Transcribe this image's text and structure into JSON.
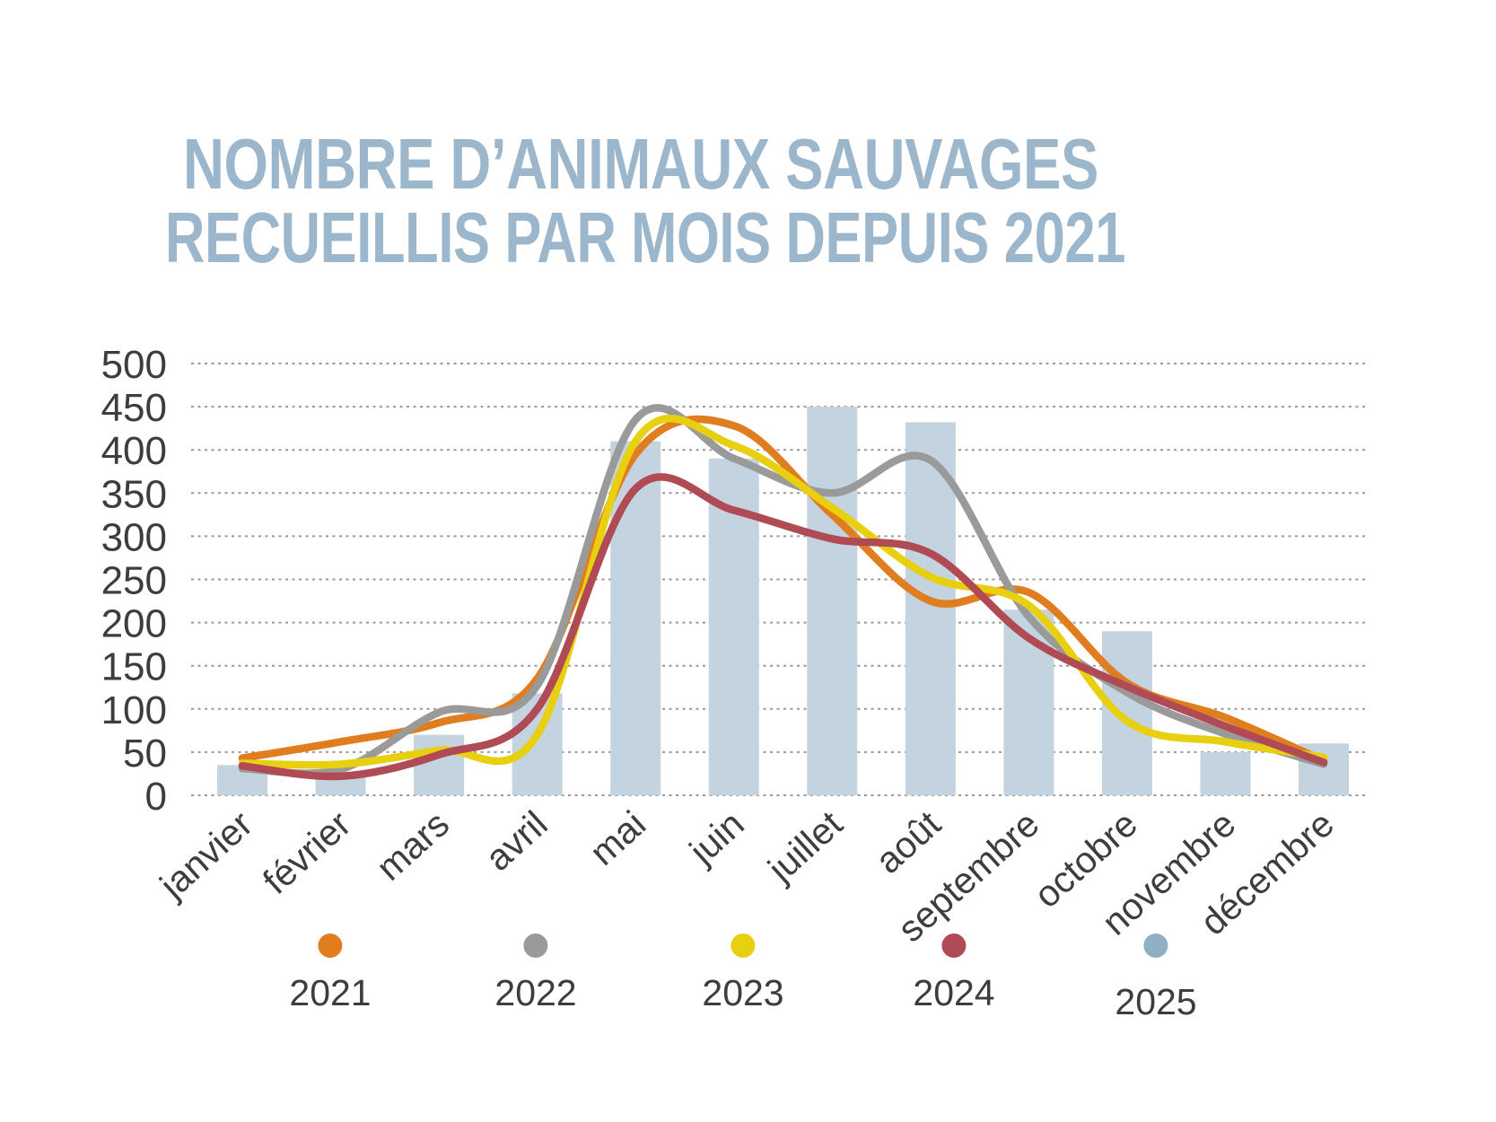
{
  "title": {
    "full": "NOMBRE D’ANIMAUX SAUVAGES RECUEILLIS PAR MOIS DEPUIS 2021",
    "lines": [
      "NOMBRE D’ANIMAUX SAUVAGES",
      "RECUEILLIS PAR MOIS DEPUIS 2021"
    ],
    "color": "#9cb7cb"
  },
  "chart_data": {
    "type": "mixed",
    "subtype": "bars-for-2025-with-smoothed-lines-2021-2024",
    "categories": [
      "janvier",
      "février",
      "mars",
      "avril",
      "mai",
      "juin",
      "juillet",
      "août",
      "septembre",
      "octobre",
      "novembre",
      "décembre"
    ],
    "series": [
      {
        "name": "2021",
        "type": "line",
        "color": "#e07e1f",
        "values": [
          43,
          62,
          84,
          135,
          395,
          428,
          325,
          225,
          235,
          130,
          90,
          40
        ]
      },
      {
        "name": "2022",
        "type": "line",
        "color": "#9a9a9a",
        "values": [
          31,
          30,
          96,
          127,
          435,
          390,
          350,
          388,
          207,
          119,
          71,
          36
        ]
      },
      {
        "name": "2023",
        "type": "line",
        "color": "#e8cf10",
        "values": [
          37,
          36,
          52,
          70,
          410,
          405,
          333,
          253,
          220,
          86,
          62,
          44
        ]
      },
      {
        "name": "2024",
        "type": "line",
        "color": "#b04a55",
        "values": [
          34,
          22,
          47,
          100,
          355,
          330,
          297,
          280,
          182,
          126,
          80,
          38
        ]
      },
      {
        "name": "2025",
        "type": "bar",
        "color": "#c4d3e0",
        "values": [
          35,
          25,
          70,
          118,
          410,
          390,
          450,
          432,
          215,
          190,
          50,
          60
        ]
      }
    ],
    "ylim": [
      0,
      500
    ],
    "y_tick_step": 50,
    "y_tick_labels": [
      "0",
      "50",
      "100",
      "150",
      "200",
      "250",
      "300",
      "350",
      "400",
      "450",
      "500"
    ],
    "grid": "dotted horizontal lines",
    "grid_color": "#999999",
    "legend_position": "bottom",
    "legend": [
      {
        "label": "2021",
        "color": "#e07e1f"
      },
      {
        "label": "2022",
        "color": "#9a9a9a"
      },
      {
        "label": "2023",
        "color": "#e8cf10"
      },
      {
        "label": "2024",
        "color": "#b04a55"
      },
      {
        "label": "2025",
        "color": "#8fafc5"
      }
    ],
    "xlabel": "",
    "ylabel": ""
  }
}
